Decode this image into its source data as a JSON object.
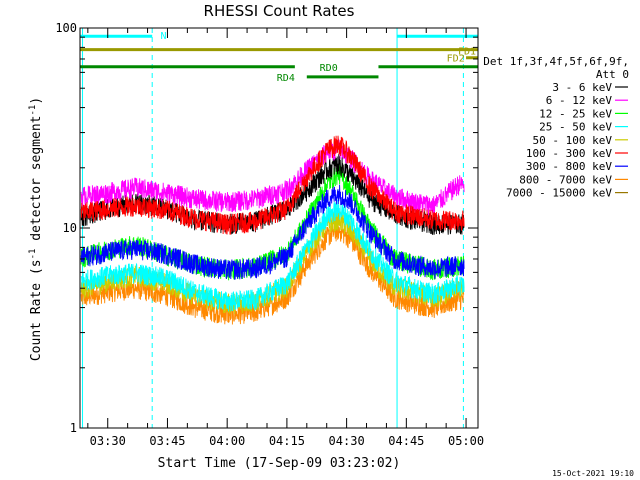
{
  "chart_data": {
    "type": "line",
    "title": "RHESSI Count Rates",
    "xlabel": "Start Time (17-Sep-09 03:23:02)",
    "ylabel": "Count Rate (s⁻¹ detector segment⁻¹)",
    "ylabel_parts": {
      "main": "Count Rate (s",
      "sup1": "-1",
      "mid": " detector segment",
      "sup2": "-1",
      "end": ")"
    },
    "y_scale": "log",
    "ylim": [
      1,
      100
    ],
    "y_ticks": [
      {
        "value": 1,
        "label": "1"
      },
      {
        "value": 10,
        "label": "10"
      },
      {
        "value": 100,
        "label": "100"
      }
    ],
    "xlim": [
      "03:23:02",
      "05:03:00"
    ],
    "x_ticks": [
      {
        "value": "03:30",
        "label": "03:30"
      },
      {
        "value": "03:45",
        "label": "03:45"
      },
      {
        "value": "04:00",
        "label": "04:00"
      },
      {
        "value": "04:15",
        "label": "04:15"
      },
      {
        "value": "04:30",
        "label": "04:30"
      },
      {
        "value": "04:45",
        "label": "04:45"
      },
      {
        "value": "05:00",
        "label": "05:00"
      }
    ],
    "legend_header": [
      "Det 1f,3f,4f,5f,6f,9f,",
      "Att 0"
    ],
    "legend_placement": "right",
    "series": [
      {
        "name": "3 - 6 keV",
        "color": "#000000",
        "x": [
          "03:24",
          "03:30",
          "03:37",
          "03:45",
          "03:52",
          "04:00",
          "04:07",
          "04:15",
          "04:20",
          "04:25",
          "04:28",
          "04:31",
          "04:36",
          "04:42",
          "04:47",
          "04:52",
          "04:58"
        ],
        "y": [
          11.5,
          12.5,
          13.5,
          12.5,
          11.0,
          10.5,
          10.8,
          12.5,
          15.5,
          19.5,
          21.0,
          18.5,
          14.0,
          11.8,
          11.0,
          10.5,
          10.5
        ]
      },
      {
        "name": "6 - 12 keV",
        "color": "#ff00ff",
        "x": [
          "03:24",
          "03:30",
          "03:37",
          "03:45",
          "03:52",
          "04:00",
          "04:07",
          "04:15",
          "04:20",
          "04:25",
          "04:28",
          "04:31",
          "04:36",
          "04:42",
          "04:47",
          "04:52",
          "04:58"
        ],
        "y": [
          14.5,
          15.0,
          16.0,
          15.0,
          14.0,
          13.5,
          14.0,
          15.5,
          19.5,
          24.0,
          25.0,
          22.5,
          17.5,
          14.5,
          13.5,
          13.0,
          16.5
        ]
      },
      {
        "name": "12 - 25 keV",
        "color": "#00ff00",
        "x": [
          "03:24",
          "03:30",
          "03:37",
          "03:45",
          "03:52",
          "04:00",
          "04:07",
          "04:15",
          "04:20",
          "04:25",
          "04:28",
          "04:31",
          "04:36",
          "04:42",
          "04:47",
          "04:52",
          "04:58"
        ],
        "y": [
          7.2,
          7.8,
          8.3,
          7.3,
          6.6,
          6.2,
          6.4,
          7.5,
          11.0,
          16.5,
          19.0,
          15.5,
          10.0,
          7.0,
          6.6,
          6.2,
          6.5
        ]
      },
      {
        "name": "25 - 50 keV",
        "color": "#00ffff",
        "x": [
          "03:24",
          "03:30",
          "03:37",
          "03:45",
          "03:52",
          "04:00",
          "04:07",
          "04:15",
          "04:20",
          "04:25",
          "04:28",
          "04:31",
          "04:36",
          "04:42",
          "04:47",
          "04:52",
          "04:58"
        ],
        "y": [
          5.5,
          5.8,
          6.0,
          5.6,
          4.8,
          4.3,
          4.4,
          5.3,
          8.0,
          11.5,
          12.5,
          11.0,
          7.6,
          5.5,
          5.0,
          4.7,
          5.2
        ]
      },
      {
        "name": "50 - 100 keV",
        "color": "#cccc00",
        "x": [
          "03:24",
          "03:30",
          "03:37",
          "03:45",
          "03:52",
          "04:00",
          "04:07",
          "04:15",
          "04:20",
          "04:25",
          "04:28",
          "04:31",
          "04:36",
          "04:42",
          "04:47",
          "04:52",
          "04:58"
        ],
        "y": [
          5.0,
          5.4,
          5.8,
          5.3,
          4.6,
          4.2,
          4.3,
          5.1,
          7.7,
          10.5,
          11.0,
          9.8,
          7.0,
          5.1,
          4.8,
          4.5,
          5.0
        ]
      },
      {
        "name": "100 - 300 keV",
        "color": "#ff0000",
        "x": [
          "03:24",
          "03:30",
          "03:37",
          "03:45",
          "03:52",
          "04:00",
          "04:07",
          "04:15",
          "04:20",
          "04:25",
          "04:28",
          "04:31",
          "04:36",
          "04:42",
          "04:47",
          "04:52",
          "04:58"
        ],
        "y": [
          12.0,
          12.5,
          13.0,
          12.3,
          11.2,
          10.5,
          10.8,
          12.5,
          18.0,
          24.5,
          26.5,
          23.0,
          16.0,
          12.2,
          11.5,
          11.0,
          11.0
        ]
      },
      {
        "name": "300 - 800 keV",
        "color": "#0000ff",
        "x": [
          "03:24",
          "03:30",
          "03:37",
          "03:45",
          "03:52",
          "04:00",
          "04:07",
          "04:15",
          "04:20",
          "04:25",
          "04:28",
          "04:31",
          "04:36",
          "04:42",
          "04:47",
          "04:52",
          "04:58"
        ],
        "y": [
          7.2,
          7.6,
          7.9,
          7.4,
          6.6,
          6.2,
          6.3,
          7.2,
          10.5,
          14.0,
          15.0,
          13.5,
          9.5,
          7.0,
          6.6,
          6.3,
          6.5
        ]
      },
      {
        "name": "800 - 7000 keV",
        "color": "#ff8800",
        "x": [
          "03:24",
          "03:30",
          "03:37",
          "03:45",
          "03:52",
          "04:00",
          "04:07",
          "04:15",
          "04:20",
          "04:25",
          "04:28",
          "04:31",
          "04:36",
          "04:42",
          "04:47",
          "04:52",
          "04:58"
        ],
        "y": [
          4.5,
          4.8,
          5.0,
          4.6,
          4.0,
          3.7,
          3.8,
          4.5,
          6.6,
          9.0,
          9.8,
          8.8,
          6.2,
          4.5,
          4.2,
          4.0,
          4.4
        ]
      },
      {
        "name": "7000 - 15000 keV",
        "color": "#997700",
        "x": [],
        "y": []
      }
    ],
    "vertical_markers": [
      {
        "x": "03:23:40",
        "style": "solid",
        "color": "#00ffff"
      },
      {
        "x": "03:41:10",
        "style": "dashed",
        "color": "#00ffff"
      },
      {
        "x": "04:42:40",
        "style": "solid",
        "color": "#00ffff"
      },
      {
        "x": "04:59:20",
        "style": "dashed",
        "color": "#00ffff"
      }
    ],
    "flag_bars": [
      {
        "label": "N",
        "color": "#00ffff",
        "level": 91,
        "segments": [
          [
            "03:23:02",
            "03:41:10"
          ],
          [
            "04:42:40",
            "05:03:00"
          ]
        ]
      },
      {
        "label": "FD1",
        "color": "#999900",
        "level": 78,
        "segments": [
          [
            "03:23:02",
            "05:03:00"
          ]
        ]
      },
      {
        "label": "FD2",
        "color": "#999900",
        "level": 71,
        "segments": [
          [
            "05:00:00",
            "05:03:00"
          ]
        ]
      },
      {
        "label": "RD0",
        "color": "#008800",
        "level": 64,
        "segments": [
          [
            "03:23:02",
            "04:17:00"
          ],
          [
            "04:38:00",
            "05:03:00"
          ]
        ]
      },
      {
        "label": "RD4",
        "color": "#008800",
        "level": 57,
        "segments": [
          [
            "04:20:00",
            "04:38:00"
          ]
        ]
      }
    ]
  },
  "footer_stamp": "15-Oct-2021 19:10"
}
